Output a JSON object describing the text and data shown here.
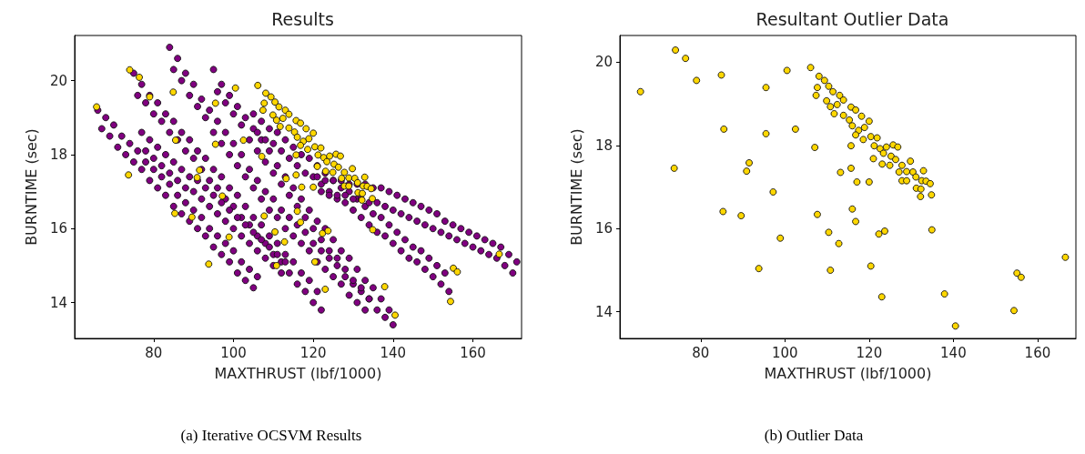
{
  "chart_data": [
    {
      "type": "scatter",
      "title": "Results",
      "xlabel": "MAXTHRUST (lbf/1000)",
      "ylabel": "BURNTIME (sec)",
      "annotations": [
        "(a) Iterative OCSVM Results"
      ],
      "xlim": [
        60.2,
        172.2
      ],
      "ylim": [
        13.03,
        21.22
      ],
      "xticks": [
        80,
        100,
        120,
        140,
        160
      ],
      "yticks": [
        14,
        16,
        18,
        20
      ],
      "grid": false,
      "marker": "circle",
      "series": [
        {
          "color": "#800080",
          "x": [
            66,
            67,
            68,
            69,
            70,
            71,
            72,
            73,
            74,
            75,
            76,
            77,
            78,
            79,
            80,
            81,
            82,
            83,
            84,
            85,
            86,
            87,
            88,
            89,
            90,
            91,
            92,
            93,
            94,
            95,
            96,
            97,
            98,
            99,
            100,
            101,
            102,
            103,
            104,
            105,
            106,
            75,
            76,
            77,
            78,
            79,
            80,
            81,
            82,
            83,
            84,
            85,
            86,
            87,
            88,
            89,
            90,
            91,
            92,
            93,
            94,
            95,
            96,
            97,
            98,
            99,
            100,
            101,
            102,
            103,
            104,
            105,
            106,
            107,
            108,
            109,
            110,
            111,
            112,
            113,
            114,
            115,
            116,
            117,
            118,
            119,
            120,
            121,
            122,
            84,
            85,
            86,
            87,
            88,
            89,
            90,
            91,
            92,
            93,
            94,
            95,
            96,
            97,
            98,
            99,
            100,
            101,
            102,
            103,
            104,
            105,
            106,
            107,
            108,
            109,
            110,
            111,
            112,
            113,
            114,
            115,
            116,
            117,
            118,
            119,
            120,
            121,
            122,
            123,
            124,
            125,
            126,
            127,
            128,
            129,
            130,
            131,
            132,
            133,
            134,
            95,
            96,
            97,
            98,
            99,
            100,
            101,
            102,
            103,
            104,
            105,
            106,
            107,
            108,
            109,
            110,
            111,
            112,
            113,
            114,
            115,
            116,
            117,
            118,
            119,
            120,
            121,
            122,
            123,
            124,
            125,
            126,
            127,
            128,
            129,
            130,
            131,
            132,
            133,
            134,
            135,
            136,
            137,
            138,
            139,
            140,
            105,
            106,
            107,
            108,
            109,
            110,
            111,
            112,
            113,
            114,
            115,
            116,
            117,
            118,
            119,
            120,
            121,
            122,
            123,
            124,
            125,
            126,
            127,
            128,
            129,
            130,
            131,
            132,
            133,
            134,
            135,
            136,
            137,
            138,
            139,
            140,
            141,
            142,
            143,
            144,
            145,
            146,
            147,
            148,
            149,
            150,
            151,
            152,
            153,
            154,
            121,
            122,
            123,
            124,
            125,
            126,
            127,
            128,
            129,
            130,
            131,
            132,
            133,
            134,
            135,
            136,
            137,
            138,
            139,
            140,
            141,
            142,
            143,
            144,
            145,
            146,
            147,
            148,
            149,
            150,
            151,
            152,
            153,
            154,
            155,
            156,
            157,
            158,
            159,
            160,
            161,
            162,
            163,
            164,
            165,
            166,
            167,
            168,
            169,
            170,
            171,
            77,
            78,
            79,
            80,
            81,
            82,
            83,
            84,
            85,
            86,
            87,
            88,
            89,
            90,
            91,
            92,
            93,
            94,
            95,
            96,
            97,
            98,
            99,
            100,
            101,
            102,
            103,
            104,
            105,
            106,
            107,
            108,
            109,
            110,
            111,
            112,
            113
          ],
          "values": [
            19.2,
            18.7,
            19.0,
            18.5,
            18.8,
            18.2,
            18.5,
            18.0,
            18.3,
            17.8,
            18.1,
            17.6,
            17.8,
            17.3,
            17.6,
            17.1,
            17.4,
            16.9,
            17.2,
            16.6,
            16.9,
            16.4,
            16.7,
            16.2,
            16.5,
            16.0,
            16.3,
            15.8,
            16.0,
            15.5,
            15.8,
            15.3,
            15.6,
            15.1,
            15.4,
            14.8,
            15.1,
            14.6,
            14.9,
            14.4,
            14.7,
            20.2,
            19.6,
            19.9,
            19.4,
            19.6,
            19.1,
            19.4,
            18.9,
            19.1,
            18.6,
            18.9,
            18.4,
            18.6,
            18.1,
            18.4,
            17.9,
            18.1,
            17.6,
            17.9,
            17.3,
            17.6,
            17.1,
            17.4,
            16.8,
            17.1,
            16.6,
            16.9,
            16.3,
            16.6,
            16.1,
            16.3,
            15.8,
            16.1,
            15.6,
            15.8,
            15.3,
            15.6,
            15.1,
            15.3,
            14.8,
            15.1,
            14.5,
            14.8,
            14.3,
            14.6,
            14.0,
            14.3,
            13.8,
            20.9,
            20.3,
            20.6,
            20.0,
            20.2,
            19.6,
            19.9,
            19.3,
            19.5,
            19.0,
            19.2,
            18.6,
            18.9,
            18.3,
            18.6,
            18.0,
            18.3,
            17.7,
            18.0,
            17.4,
            17.6,
            17.1,
            17.3,
            16.8,
            17.0,
            16.5,
            16.8,
            16.3,
            16.5,
            16.0,
            16.3,
            15.8,
            16.1,
            15.6,
            15.9,
            15.4,
            15.6,
            15.1,
            15.4,
            14.9,
            15.2,
            14.7,
            15.0,
            14.5,
            14.7,
            14.2,
            14.5,
            14.0,
            14.3,
            13.8,
            14.1,
            20.3,
            19.7,
            19.9,
            19.4,
            19.6,
            19.1,
            19.3,
            18.8,
            19.0,
            18.4,
            18.7,
            18.1,
            18.4,
            17.8,
            18.1,
            17.5,
            17.7,
            17.2,
            17.4,
            16.9,
            17.1,
            16.6,
            16.8,
            16.3,
            16.5,
            16.0,
            16.2,
            15.7,
            16.0,
            15.4,
            15.7,
            15.2,
            15.4,
            14.9,
            15.2,
            14.6,
            14.9,
            14.4,
            14.6,
            14.1,
            14.4,
            13.8,
            14.1,
            13.6,
            13.8,
            13.4,
            19.1,
            18.6,
            18.9,
            18.4,
            18.7,
            18.3,
            18.6,
            18.1,
            18.4,
            17.9,
            18.2,
            17.7,
            18.0,
            17.5,
            17.9,
            17.4,
            17.7,
            17.2,
            17.5,
            17.0,
            17.3,
            16.8,
            17.1,
            16.7,
            17.0,
            16.5,
            16.8,
            16.3,
            16.6,
            16.1,
            16.4,
            15.9,
            16.3,
            15.8,
            16.1,
            15.6,
            15.9,
            15.4,
            15.7,
            15.2,
            15.5,
            15.1,
            15.4,
            14.9,
            15.2,
            14.7,
            15.0,
            14.5,
            14.8,
            14.3,
            17.4,
            17.0,
            17.3,
            16.9,
            17.3,
            16.9,
            17.3,
            16.9,
            17.2,
            16.8,
            17.2,
            16.8,
            17.2,
            16.7,
            17.1,
            16.7,
            17.1,
            16.6,
            17.0,
            16.5,
            16.9,
            16.4,
            16.8,
            16.3,
            16.7,
            16.2,
            16.6,
            16.1,
            16.5,
            16.0,
            16.4,
            15.9,
            16.2,
            15.8,
            16.1,
            15.7,
            16.0,
            15.6,
            15.9,
            15.5,
            15.8,
            15.4,
            15.7,
            15.3,
            15.6,
            15.2,
            15.5,
            15.0,
            15.3,
            14.8,
            15.1,
            18.6,
            18.1,
            18.4,
            17.9,
            18.2,
            17.7,
            18.0,
            17.5,
            17.8,
            17.3,
            17.6,
            17.1,
            17.4,
            17.0,
            17.3,
            16.8,
            17.1,
            16.6,
            16.9,
            16.4,
            16.7,
            16.2,
            16.5,
            16.0,
            16.3,
            15.8,
            16.1,
            15.6,
            15.9,
            15.4,
            15.7,
            15.2,
            15.5,
            15.0,
            15.3,
            14.8,
            15.1
          ]
        },
        {
          "color": "#ffd700",
          "x": [
            65.7,
            74.0,
            76.4,
            79.0,
            84.9,
            85.5,
            73.7,
            85.3,
            89.6,
            91.5,
            90.9,
            95.5,
            95.5,
            97.2,
            98.9,
            93.8,
            100.5,
            102.5,
            106.1,
            107.1,
            107.7,
            110.4,
            110.8,
            112.8,
            113.2,
            115.7,
            115.7,
            116.0,
            116.8,
            117.1,
            120.0,
            120.4,
            122.3,
            123.7,
            123.0,
            134.9,
            137.9,
            140.5,
            154.4,
            155.1,
            156.1,
            166.6,
            108.1,
            109.4,
            107.7,
            110.4,
            107.4,
            111.4,
            109.9,
            113.0,
            110.8,
            113.9,
            112.4,
            111.7,
            115.7,
            116.8,
            113.9,
            115.3,
            118.2,
            120.0,
            116.0,
            117.5,
            118.9,
            116.8,
            118.6,
            120.4,
            121.9,
            122.6,
            121.2,
            124.1,
            125.7,
            126.8,
            121.0,
            123.4,
            125.2,
            126.3,
            123.1,
            124.9,
            127.8,
            129.8,
            127.1,
            128.9,
            130.4,
            132.9,
            127.8,
            128.9,
            131.1,
            132.5,
            133.5,
            134.5,
            131.2,
            132.3,
            132.2,
            134.8
          ],
          "values": [
            19.29,
            20.29,
            20.09,
            19.56,
            19.69,
            18.39,
            17.45,
            16.41,
            16.31,
            17.58,
            17.38,
            19.39,
            18.28,
            16.88,
            15.77,
            15.04,
            19.8,
            18.39,
            19.87,
            17.95,
            16.34,
            15.91,
            15.0,
            15.64,
            17.35,
            17.99,
            17.45,
            16.47,
            16.17,
            17.12,
            17.12,
            15.1,
            15.87,
            15.94,
            14.36,
            15.97,
            14.43,
            13.66,
            14.03,
            14.93,
            14.83,
            15.31,
            19.66,
            19.56,
            19.39,
            19.42,
            19.2,
            19.29,
            19.07,
            19.2,
            18.93,
            19.09,
            18.98,
            18.76,
            18.92,
            18.85,
            18.72,
            18.61,
            18.7,
            18.58,
            18.47,
            18.36,
            18.43,
            18.25,
            18.14,
            18.21,
            18.18,
            17.92,
            17.99,
            17.96,
            18.01,
            17.96,
            17.68,
            17.81,
            17.74,
            17.66,
            17.55,
            17.52,
            17.52,
            17.62,
            17.36,
            17.37,
            17.36,
            17.39,
            17.15,
            17.15,
            17.24,
            17.15,
            17.14,
            17.08,
            16.97,
            16.95,
            16.77,
            16.81
          ]
        }
      ]
    },
    {
      "type": "scatter",
      "title": "Resultant Outlier Data",
      "xlabel": "MAXTHRUST (lbf/1000)",
      "ylabel": "BURNTIME (sec)",
      "annotations": [
        "(b) Outlier Data"
      ],
      "xlim": [
        60.8,
        169.1
      ],
      "ylim": [
        13.36,
        20.64
      ],
      "xticks": [
        80,
        100,
        120,
        140,
        160
      ],
      "yticks": [
        14,
        16,
        18,
        20
      ],
      "grid": false,
      "marker": "circle",
      "series": [
        {
          "color": "#ffd700",
          "x": [
            65.7,
            74.0,
            76.4,
            79.0,
            84.9,
            85.5,
            73.7,
            85.3,
            89.6,
            91.5,
            90.9,
            95.5,
            95.5,
            97.2,
            98.9,
            93.8,
            100.5,
            102.5,
            106.1,
            107.1,
            107.7,
            110.4,
            110.8,
            112.8,
            113.2,
            115.7,
            115.7,
            116.0,
            116.8,
            117.1,
            120.0,
            120.4,
            122.3,
            123.7,
            123.0,
            134.9,
            137.9,
            140.5,
            154.4,
            155.1,
            156.1,
            166.6,
            108.1,
            109.4,
            107.7,
            110.4,
            107.4,
            111.4,
            109.9,
            113.0,
            110.8,
            113.9,
            112.4,
            111.7,
            115.7,
            116.8,
            113.9,
            115.3,
            118.2,
            120.0,
            116.0,
            117.5,
            118.9,
            116.8,
            118.6,
            120.4,
            121.9,
            122.6,
            121.2,
            124.1,
            125.7,
            126.8,
            121.0,
            123.4,
            125.2,
            126.3,
            123.1,
            124.9,
            127.8,
            129.8,
            127.1,
            128.9,
            130.4,
            132.9,
            127.8,
            128.9,
            131.1,
            132.5,
            133.5,
            134.5,
            131.2,
            132.3,
            132.2,
            134.8
          ],
          "values": [
            19.29,
            20.29,
            20.09,
            19.56,
            19.69,
            18.39,
            17.45,
            16.41,
            16.31,
            17.58,
            17.38,
            19.39,
            18.28,
            16.88,
            15.77,
            15.04,
            19.8,
            18.39,
            19.87,
            17.95,
            16.34,
            15.91,
            15.0,
            15.64,
            17.35,
            17.99,
            17.45,
            16.47,
            16.17,
            17.12,
            17.12,
            15.1,
            15.87,
            15.94,
            14.36,
            15.97,
            14.43,
            13.66,
            14.03,
            14.93,
            14.83,
            15.31,
            19.66,
            19.56,
            19.39,
            19.42,
            19.2,
            19.29,
            19.07,
            19.2,
            18.93,
            19.09,
            18.98,
            18.76,
            18.92,
            18.85,
            18.72,
            18.61,
            18.7,
            18.58,
            18.47,
            18.36,
            18.43,
            18.25,
            18.14,
            18.21,
            18.18,
            17.92,
            17.99,
            17.96,
            18.01,
            17.96,
            17.68,
            17.81,
            17.74,
            17.66,
            17.55,
            17.52,
            17.52,
            17.62,
            17.36,
            17.37,
            17.36,
            17.39,
            17.15,
            17.15,
            17.24,
            17.15,
            17.14,
            17.08,
            16.97,
            16.95,
            16.77,
            16.81
          ]
        }
      ]
    }
  ]
}
